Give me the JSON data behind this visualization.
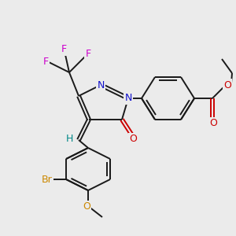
{
  "bg_color": "#ebebeb",
  "bond_color": "#1a1a1a",
  "bond_width": 1.4,
  "figsize": [
    3.0,
    3.0
  ],
  "dpi": 100,
  "colors": {
    "N": "#1010cc",
    "O": "#cc0000",
    "F": "#cc00cc",
    "Br": "#cc8800",
    "O_br": "#cc8800",
    "H": "#008888",
    "C": "#1a1a1a"
  }
}
